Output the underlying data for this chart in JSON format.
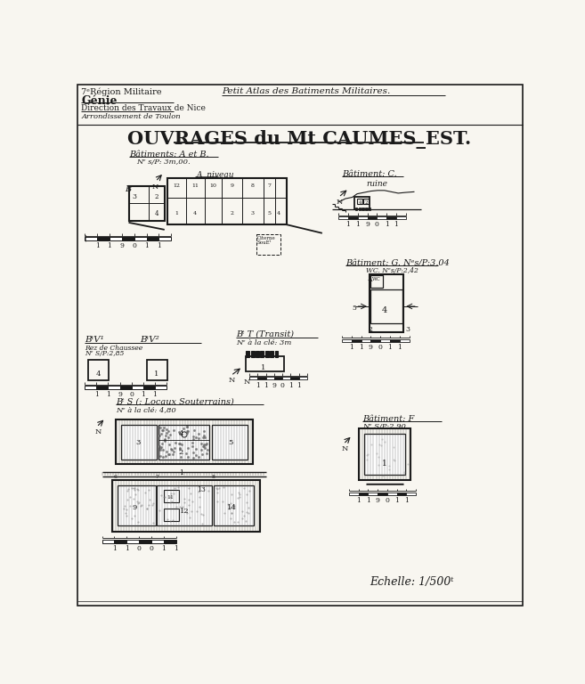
{
  "bg_color": "#f8f6f0",
  "paper_color": "#f8f6f0",
  "line_color": "#1a1a1a",
  "title_main": "OUVRAGES du Mt CAUMES_EST.",
  "header_top": "Petit Atlas des Batiments Militaires.",
  "header_left_line1": "7ᵉRégion Militaire",
  "header_left_line2": "Génie",
  "header_left_line3": "Direction des Travaux de Nice",
  "header_left_line4": "Arrondissement de Toulon",
  "section_AB": "Bâtiments: A et B.",
  "section_AB_sub": "Nᵉ s/P: 3m,00.",
  "section_C": "Bâtiment: C.",
  "section_C_note": "ruine",
  "section_G": "Bâtiment: G. Nᵉs/P:3,04",
  "section_G_sub": "WC. Nᵉs/P:2,42",
  "section_V": "BᵗV¹",
  "section_V2": "BᵗV²",
  "section_V_sub": "Rez de Chaussee",
  "section_V_sub2": "Nᵉ S/P:2,85",
  "section_T": "Bᵗ T (Transit)",
  "section_T_sub": "Nᵉ à la clé: 3m",
  "section_S": "Bᵗ S (: Locaux Souterrains)",
  "section_S_sub": "Nᵉ à la clé: 4,80",
  "section_F": "Bâtiment: F",
  "section_F_sub": "Nᵉ S/P:2,90",
  "echelle": "Echelle: 1/500ᵗ",
  "citerne_label": "Citerne\nSouEᵗ"
}
